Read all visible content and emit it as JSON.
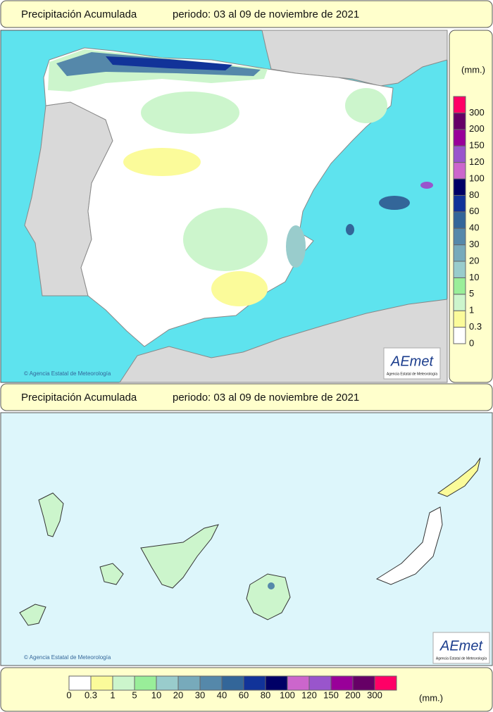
{
  "top_panel": {
    "header": {
      "title": "Precipitación Acumulada",
      "period": "periodo: 03 al 09 de noviembre de 2021"
    },
    "credit": "© Agencia Estatal de Meteorología",
    "logo": {
      "name": "AEmet",
      "subtitle": "Agencia Estatal de Meteorología"
    },
    "legend": {
      "unit": "(mm.)",
      "levels": [
        0,
        0.3,
        1,
        5,
        10,
        20,
        30,
        40,
        60,
        80,
        100,
        120,
        150,
        200,
        300
      ]
    }
  },
  "bottom_panel": {
    "header": {
      "title": "Precipitación Acumulada",
      "period": "periodo: 03 al 09 de noviembre de 2021"
    },
    "credit": "© Agencia Estatal de Meteorología",
    "logo": {
      "name": "AEmet",
      "subtitle": "Agencia Estatal de Meteorología"
    },
    "legend": {
      "unit": "(mm.)",
      "levels": [
        0,
        0.3,
        1,
        5,
        10,
        20,
        30,
        40,
        60,
        80,
        100,
        120,
        150,
        200,
        300
      ]
    }
  },
  "scale_colors": [
    "#ffffff",
    "#fbfb9a",
    "#ccf5cc",
    "#99ee99",
    "#99cccc",
    "#77aabb",
    "#5588aa",
    "#336699",
    "#113399",
    "#000066",
    "#cc66cc",
    "#9955cc",
    "#990099",
    "#660066",
    "#ff0066"
  ]
}
